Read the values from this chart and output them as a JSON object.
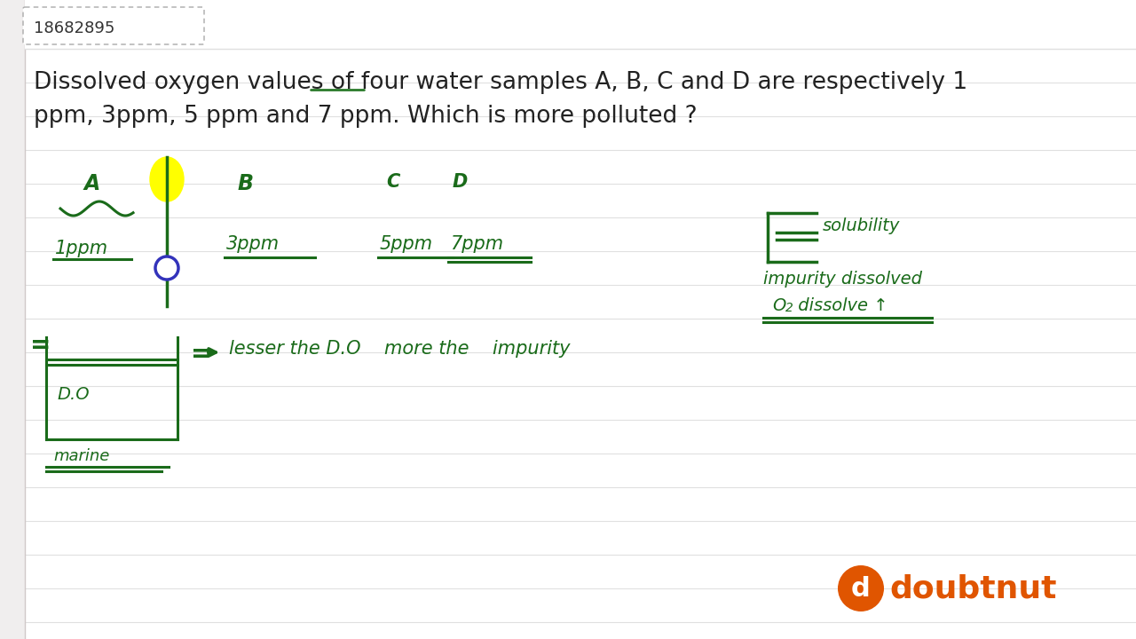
{
  "bg_top": "#ffffff",
  "bg_main": "#f5f5f5",
  "line_color": "#e0e0e0",
  "left_bar_color": "#e8e8f0",
  "id_text": "18682895",
  "q_line1": "Dissolved oxygen values of four water samples A, B, C and D are respectively 1",
  "q_line2": "ppm, 3ppm, 5 ppm and 7 ppm. Which is more polluted ?",
  "dark_green": "#1a6b1a",
  "blue_circle_color": "#3333bb",
  "yellow_circle_color": "#ffff00",
  "doubtnut_orange": "#e05500",
  "underline_green": "#2a7a2a"
}
